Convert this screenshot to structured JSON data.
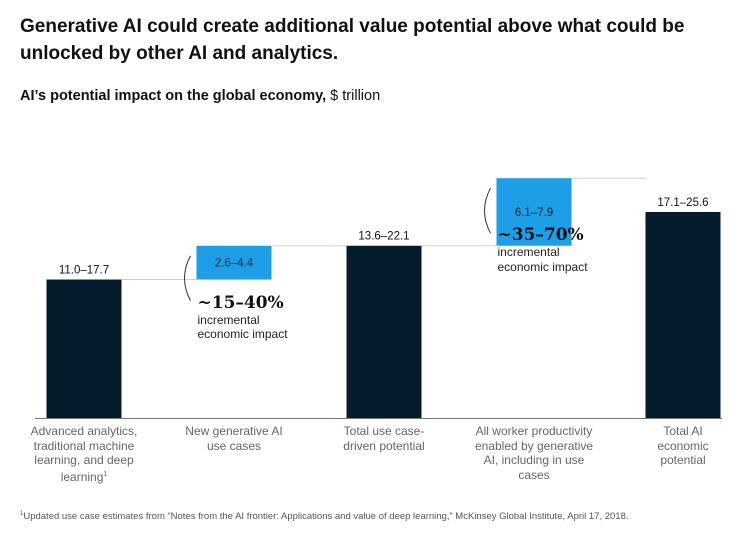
{
  "headline": "Generative AI could create additional value potential above what could be unlocked by other AI and analytics.",
  "subtitle": {
    "bold": "AI’s potential impact on the global economy,",
    "unit": " $ trillion"
  },
  "chart_data": {
    "type": "bar",
    "subtype": "waterfall",
    "categories": [
      "Advanced analytics, traditional machine learning, and deep learning",
      "New generative AI use cases",
      "Total use case-driven potential",
      "All worker productivity enabled by generative AI, including in use cases",
      "Total AI economic potential"
    ],
    "category_footnote_mark": [
      "1",
      "",
      "",
      "",
      ""
    ],
    "values": [
      {
        "low": 11.0,
        "high": 17.7,
        "label": "11.0–17.7",
        "kind": "total"
      },
      {
        "low": 2.6,
        "high": 4.4,
        "label": "2.6–4.4",
        "kind": "increment"
      },
      {
        "low": 13.6,
        "high": 22.1,
        "label": "13.6–22.1",
        "kind": "total"
      },
      {
        "low": 6.1,
        "high": 7.9,
        "label": "6.1–7.9",
        "kind": "increment"
      },
      {
        "low": 17.1,
        "high": 25.6,
        "label": "17.1–25.6",
        "kind": "total"
      }
    ],
    "annotations": [
      {
        "value": "~15–40%",
        "text": "incremental economic impact"
      },
      {
        "value": "~35–70%",
        "text": "incremental economic impact"
      }
    ],
    "title": "AI’s potential impact on the global economy, $ trillion",
    "xlabel": "",
    "ylabel": "",
    "grid": false,
    "colors": {
      "total": "#051c2c",
      "increment": "#1f9ee8",
      "connector": "#d0d0d0",
      "axis": "#777777"
    }
  },
  "footnote": {
    "mark": "1",
    "text": "Updated use case estimates from “Notes from the AI frontier: Applications and value of deep learning,” McKinsey Global Institute, April 17, 2018."
  }
}
